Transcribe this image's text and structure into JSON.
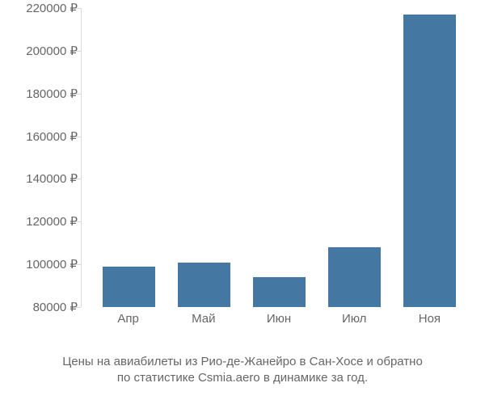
{
  "chart": {
    "type": "bar",
    "background_color": "#ffffff",
    "axis_color": "#d9d9d9",
    "text_color": "#666666",
    "currency_symbol": "₽",
    "y": {
      "min": 80000,
      "max": 220000,
      "step": 20000,
      "ticks": [
        80000,
        100000,
        120000,
        140000,
        160000,
        180000,
        200000,
        220000
      ],
      "label_fontsize": 15
    },
    "x": {
      "categories": [
        "Апр",
        "Май",
        "Июн",
        "Июл",
        "Ноя"
      ],
      "label_fontsize": 15
    },
    "series": {
      "values": [
        99000,
        101000,
        94000,
        108000,
        217000
      ],
      "bar_color": "#4577a3",
      "bar_width_fraction": 0.7
    },
    "caption": {
      "line1": "Цены на авиабилеты из Рио-де-Жанейро в Сан-Хосе и обратно",
      "line2": "по статистике Csmia.aero в динамике за год.",
      "fontsize": 15
    }
  }
}
